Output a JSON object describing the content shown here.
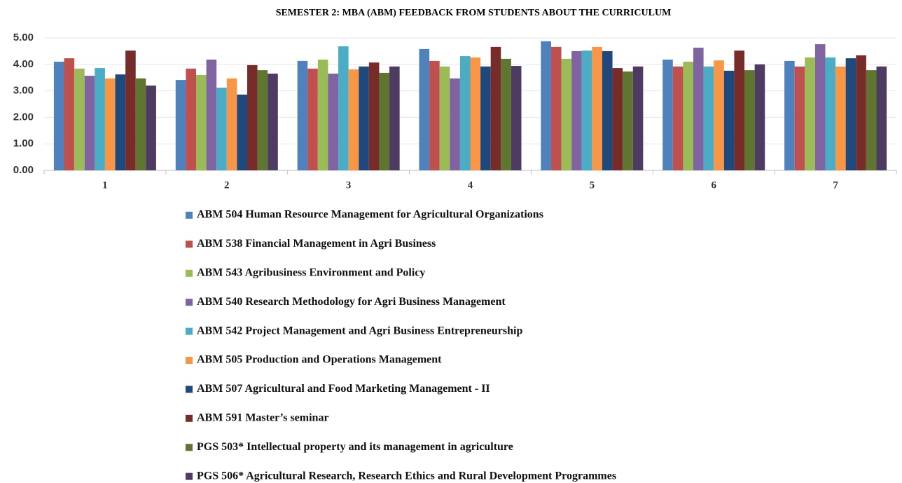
{
  "chart_data": {
    "type": "bar",
    "title": "SEMESTER 2: MBA (ABM) FEEDBACK FROM STUDENTS ABOUT THE CURRICULUM",
    "categories": [
      "1",
      "2",
      "3",
      "4",
      "5",
      "6",
      "7"
    ],
    "series": [
      {
        "name": "ABM 504 Human Resource Management for Agricultural Organizations",
        "color": "#4f81bd",
        "values": [
          4.1,
          3.41,
          4.13,
          4.58,
          4.87,
          4.18,
          4.13
        ]
      },
      {
        "name": "ABM 538 Financial Management in Agri Business",
        "color": "#c0504d",
        "values": [
          4.23,
          3.84,
          3.84,
          4.13,
          4.66,
          3.92,
          3.92
        ]
      },
      {
        "name": "ABM 543 Agribusiness Environment and Policy",
        "color": "#9bbb59",
        "values": [
          3.84,
          3.6,
          4.18,
          3.92,
          4.21,
          4.1,
          4.26
        ]
      },
      {
        "name": "ABM 540 Research Methodology for Agri Business Management",
        "color": "#8064a2",
        "values": [
          3.57,
          4.18,
          3.65,
          3.47,
          4.5,
          4.63,
          4.76
        ]
      },
      {
        "name": "ABM 542 Project Management and Agri Business Entrepreneurship",
        "color": "#4bacc6",
        "values": [
          3.86,
          3.12,
          4.68,
          4.31,
          4.52,
          3.92,
          4.26
        ]
      },
      {
        "name": "ABM 505 Production and Operations Management",
        "color": "#f79646",
        "values": [
          3.47,
          3.47,
          3.81,
          4.26,
          4.66,
          4.15,
          3.92
        ]
      },
      {
        "name": "ABM 507 Agricultural and Food Marketing Management - II",
        "color": "#1f497d",
        "values": [
          3.62,
          2.86,
          3.92,
          3.92,
          4.5,
          3.76,
          4.23
        ]
      },
      {
        "name": "ABM 591 Master’s seminar",
        "color": "#772c2a",
        "values": [
          4.52,
          3.97,
          4.07,
          4.66,
          3.86,
          4.52,
          4.34
        ]
      },
      {
        "name": "PGS 503* Intellectual property and its management in agriculture",
        "color": "#5f7530",
        "values": [
          3.47,
          3.78,
          3.68,
          4.21,
          3.73,
          3.78,
          3.78
        ]
      },
      {
        "name": "PGS 506* Agricultural Research, Research Ethics and Rural Development Programmes",
        "color": "#4d3b62",
        "values": [
          3.2,
          3.65,
          3.92,
          3.94,
          3.92,
          4.0,
          3.92
        ]
      }
    ],
    "ylim": [
      0,
      5
    ],
    "yticks": [
      {
        "value": 0,
        "label": "0.00"
      },
      {
        "value": 1,
        "label": "1.00"
      },
      {
        "value": 2,
        "label": "2.00"
      },
      {
        "value": 3,
        "label": "3.00"
      },
      {
        "value": 4,
        "label": "4.00"
      },
      {
        "value": 5,
        "label": "5.00"
      }
    ],
    "grid": true,
    "legend": "bottom"
  }
}
